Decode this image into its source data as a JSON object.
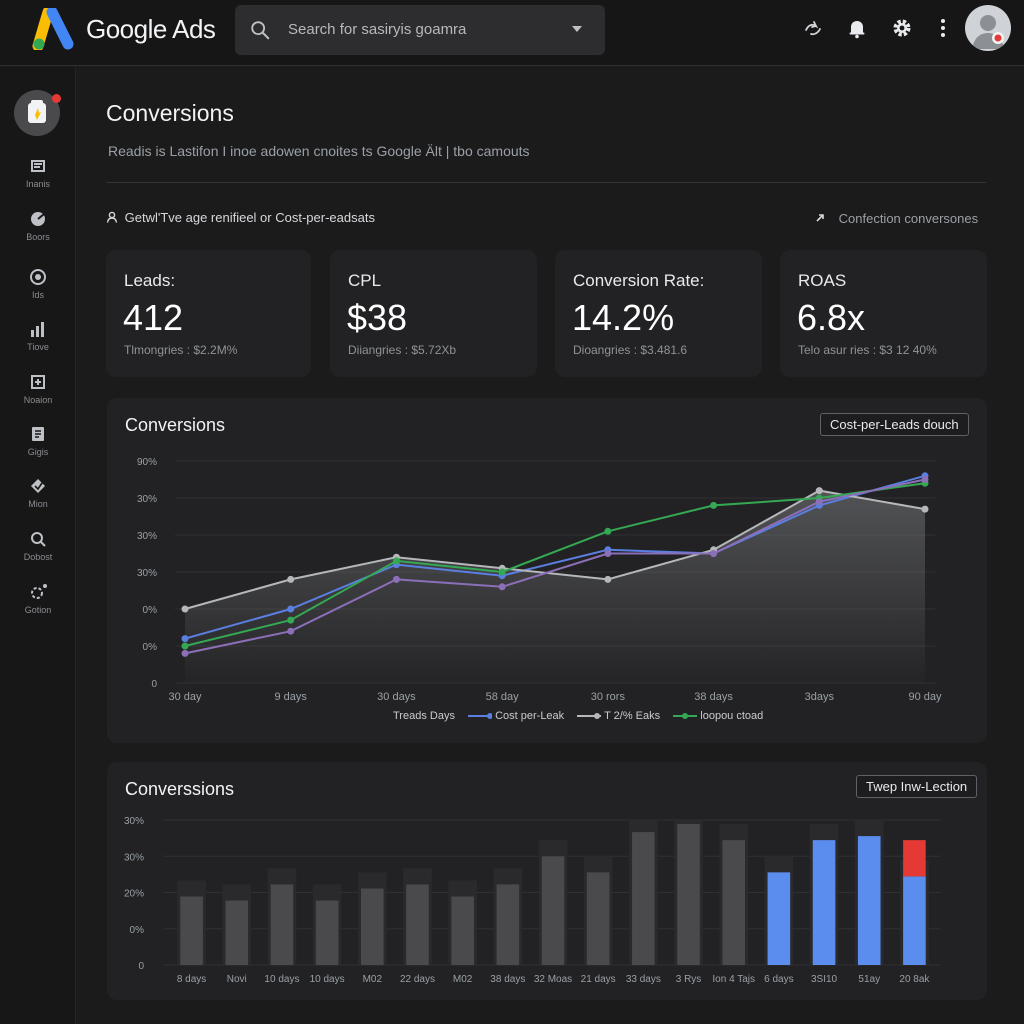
{
  "header": {
    "brand": "Google Ads",
    "search_placeholder": "Search for sasiryis goamra",
    "icons": [
      "search-icon",
      "chevron-down-icon",
      "share-icon",
      "bell-icon",
      "gear-icon",
      "more-vert-icon"
    ]
  },
  "sidebar": {
    "items": [
      {
        "label": "Inanis",
        "icon": "campaign-icon"
      },
      {
        "label": "Boors",
        "icon": "goals-icon"
      },
      {
        "label": "Ids",
        "icon": "target-icon"
      },
      {
        "label": "Tiove",
        "icon": "bar-chart-icon"
      },
      {
        "label": "Noaion",
        "icon": "tools-icon"
      },
      {
        "label": "Gigis",
        "icon": "billing-icon"
      },
      {
        "label": "Mion",
        "icon": "admin-icon"
      },
      {
        "label": "Dobost",
        "icon": "search-icon"
      },
      {
        "label": "Gotion",
        "icon": "settings-icon"
      }
    ]
  },
  "page": {
    "title": "Conversions",
    "subtitle": "Readis is Lastifon I inoe adowen cnoites ts Google Ält | tbo camouts",
    "filter_label": "Getwl'Tve age renifieel or Cost-per-eadsats",
    "filter_link": "Confection conversones"
  },
  "cards": [
    {
      "label": "Leads:",
      "value": "412",
      "sub": "Tlmongries : $2.2M%"
    },
    {
      "label": "CPL",
      "value": "$38",
      "sub": "Diiangries : $5.72Xb"
    },
    {
      "label": "Conversion Rate:",
      "value": "14.2%",
      "sub": "Dioangries : $3.481.6"
    },
    {
      "label": "ROAS",
      "value": "6.8x",
      "sub": "Telo asur ries : $3 12 40%"
    }
  ],
  "line_panel": {
    "title": "Conversions",
    "button": "Cost-per-Leads douch",
    "legend": [
      {
        "label": "Treads Days",
        "color": ""
      },
      {
        "label": "Cost per-Leak",
        "color": "#5b7fe0"
      },
      {
        "label": "T 2/% Eaks",
        "color": "#b5b7ba"
      },
      {
        "label": "loopou ctoad",
        "color": "#34a853"
      }
    ]
  },
  "bar_panel": {
    "title": "Converssions",
    "button": "Twep Inw-Lection"
  },
  "chart_data": [
    {
      "type": "line",
      "title": "Conversions",
      "y_tick_labels": [
        "90%",
        "30%",
        "30%",
        "30%",
        "0%",
        "0%",
        "0"
      ],
      "x_tick_labels": [
        "30 day",
        "9 days",
        "30 days",
        "58 day",
        "30 rors",
        "38 days",
        "3days",
        "90 day"
      ],
      "series": [
        {
          "name": "Cost per-Leak",
          "color": "#5b7fe0",
          "values": [
            1.2,
            2.0,
            3.2,
            2.9,
            3.6,
            3.5,
            4.8,
            5.6
          ]
        },
        {
          "name": "T 2/% Eaks",
          "color": "#b5b7ba",
          "values": [
            2.0,
            2.8,
            3.4,
            3.1,
            2.8,
            3.6,
            5.2,
            4.7
          ]
        },
        {
          "name": "loopou ctoad",
          "color": "#34a853",
          "values": [
            1.0,
            1.7,
            3.3,
            3.0,
            4.1,
            4.8,
            5.0,
            5.4
          ]
        },
        {
          "name": "",
          "color": "#8b6fb8",
          "values": [
            0.8,
            1.4,
            2.8,
            2.6,
            3.5,
            3.5,
            4.9,
            5.5
          ]
        }
      ],
      "area_series_index": 1,
      "ylim": [
        0,
        6
      ]
    },
    {
      "type": "bar",
      "title": "Converssions",
      "y_tick_labels": [
        "30%",
        "30%",
        "20%",
        "0%",
        "0"
      ],
      "categories": [
        "8 days",
        "Novi",
        "10 days",
        "10 days",
        "M02",
        "22 days",
        "M02",
        "38 days",
        "32 Moas",
        "21 days",
        "33 days",
        "3 Rys",
        "Ion 4 Tajs",
        "6 days",
        "3SI10",
        "51ay",
        "20 8ak"
      ],
      "values": [
        1.7,
        1.6,
        2.0,
        1.6,
        1.9,
        2.0,
        1.7,
        2.0,
        2.7,
        2.3,
        3.3,
        3.5,
        3.1,
        2.3,
        3.1,
        3.2,
        2.2
      ],
      "highlight_values": [
        0,
        0,
        0,
        0,
        0,
        0,
        0,
        0,
        0,
        0,
        0,
        0,
        0,
        0,
        0,
        0,
        0.9
      ],
      "bar_colors": [
        "#4a4a4d",
        "#4a4a4d",
        "#4a4a4d",
        "#4a4a4d",
        "#4a4a4d",
        "#4a4a4d",
        "#4a4a4d",
        "#4a4a4d",
        "#4a4a4d",
        "#4a4a4d",
        "#4a4a4d",
        "#4a4a4d",
        "#4a4a4d",
        "#5b8def",
        "#5b8def",
        "#5b8def",
        "#5b8def"
      ],
      "highlight_color": "#e53935",
      "ylim": [
        0,
        3.6
      ]
    }
  ]
}
